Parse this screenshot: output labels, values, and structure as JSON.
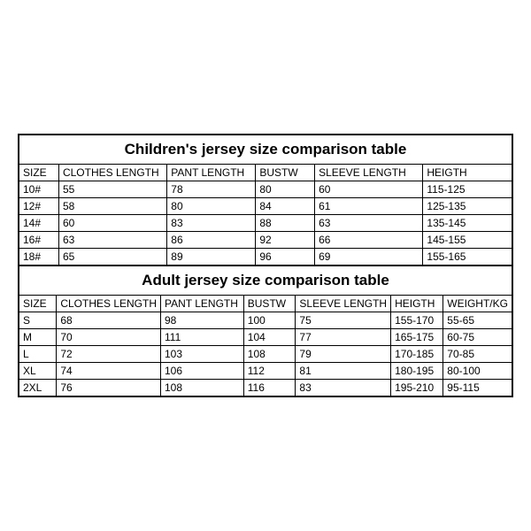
{
  "children": {
    "title": "Children's jersey size comparison table",
    "columns": [
      "SIZE",
      "CLOTHES LENGTH",
      "PANT LENGTH",
      "BUSTW",
      "SLEEVE LENGTH",
      "HEIGTH"
    ],
    "col_widths": [
      "8%",
      "22%",
      "18%",
      "12%",
      "22%",
      "18%"
    ],
    "rows": [
      [
        "10#",
        "55",
        "78",
        "80",
        "60",
        "115-125"
      ],
      [
        "12#",
        "58",
        "80",
        "84",
        "61",
        "125-135"
      ],
      [
        "14#",
        "60",
        "83",
        "88",
        "63",
        "135-145"
      ],
      [
        "16#",
        "63",
        "86",
        "92",
        "66",
        "145-155"
      ],
      [
        "18#",
        "65",
        "89",
        "96",
        "69",
        "155-165"
      ]
    ]
  },
  "adult": {
    "title": "Adult jersey size comparison table",
    "columns": [
      "SIZE",
      "CLOTHES LENGTH",
      "PANT LENGTH",
      "BUSTW",
      "SLEEVE LENGTH",
      "HEIGTH",
      "WEIGHT/KG"
    ],
    "col_widths": [
      "8%",
      "21%",
      "17%",
      "11%",
      "19%",
      "11%",
      "13%"
    ],
    "rows": [
      [
        "S",
        "68",
        "98",
        "100",
        "75",
        "155-170",
        "55-65"
      ],
      [
        "M",
        "70",
        "111",
        "104",
        "77",
        "165-175",
        "60-75"
      ],
      [
        "L",
        "72",
        "103",
        "108",
        "79",
        "170-185",
        "70-85"
      ],
      [
        "XL",
        "74",
        "106",
        "112",
        "81",
        "180-195",
        "80-100"
      ],
      [
        "2XL",
        "76",
        "108",
        "116",
        "83",
        "195-210",
        "95-115"
      ]
    ]
  },
  "styling": {
    "border_color": "#000000",
    "background_color": "#ffffff",
    "title_fontsize": 17,
    "cell_fontsize": 12,
    "font_family": "Arial"
  }
}
